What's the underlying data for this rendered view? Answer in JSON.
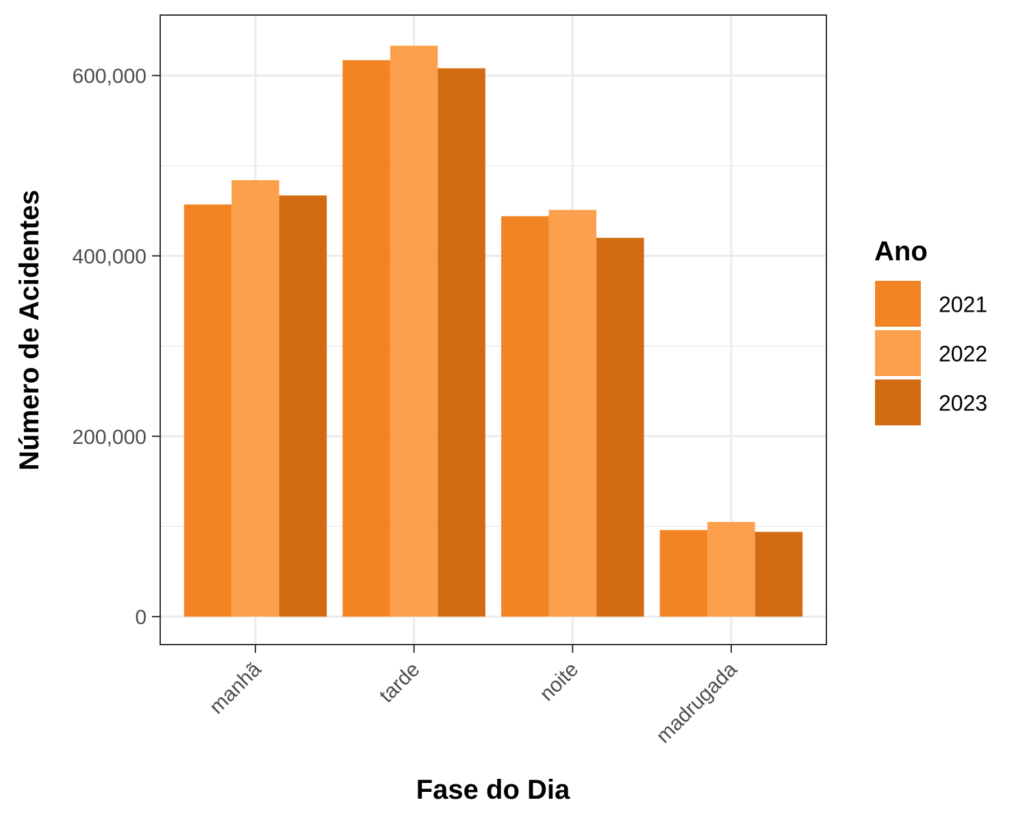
{
  "chart_data": {
    "type": "bar",
    "xlabel": "Fase do Dia",
    "ylabel": "Número de Acidentes",
    "categories": [
      "manhã",
      "tarde",
      "noite",
      "madrugada"
    ],
    "series": [
      {
        "name": "2021",
        "color": "#F28424",
        "values": [
          457000,
          617000,
          444000,
          96000
        ]
      },
      {
        "name": "2022",
        "color": "#FDA04D",
        "values": [
          484000,
          633000,
          451000,
          105000
        ]
      },
      {
        "name": "2023",
        "color": "#D26C12",
        "values": [
          467000,
          608000,
          420000,
          94000
        ]
      }
    ],
    "ylim": [
      -31000,
      667000
    ],
    "yticks": [
      0,
      200000,
      400000,
      600000
    ],
    "ytick_labels": [
      "0",
      "200,000",
      "400,000",
      "600,000"
    ],
    "legend": {
      "title": "Ano",
      "position": "right"
    },
    "grid": true
  }
}
